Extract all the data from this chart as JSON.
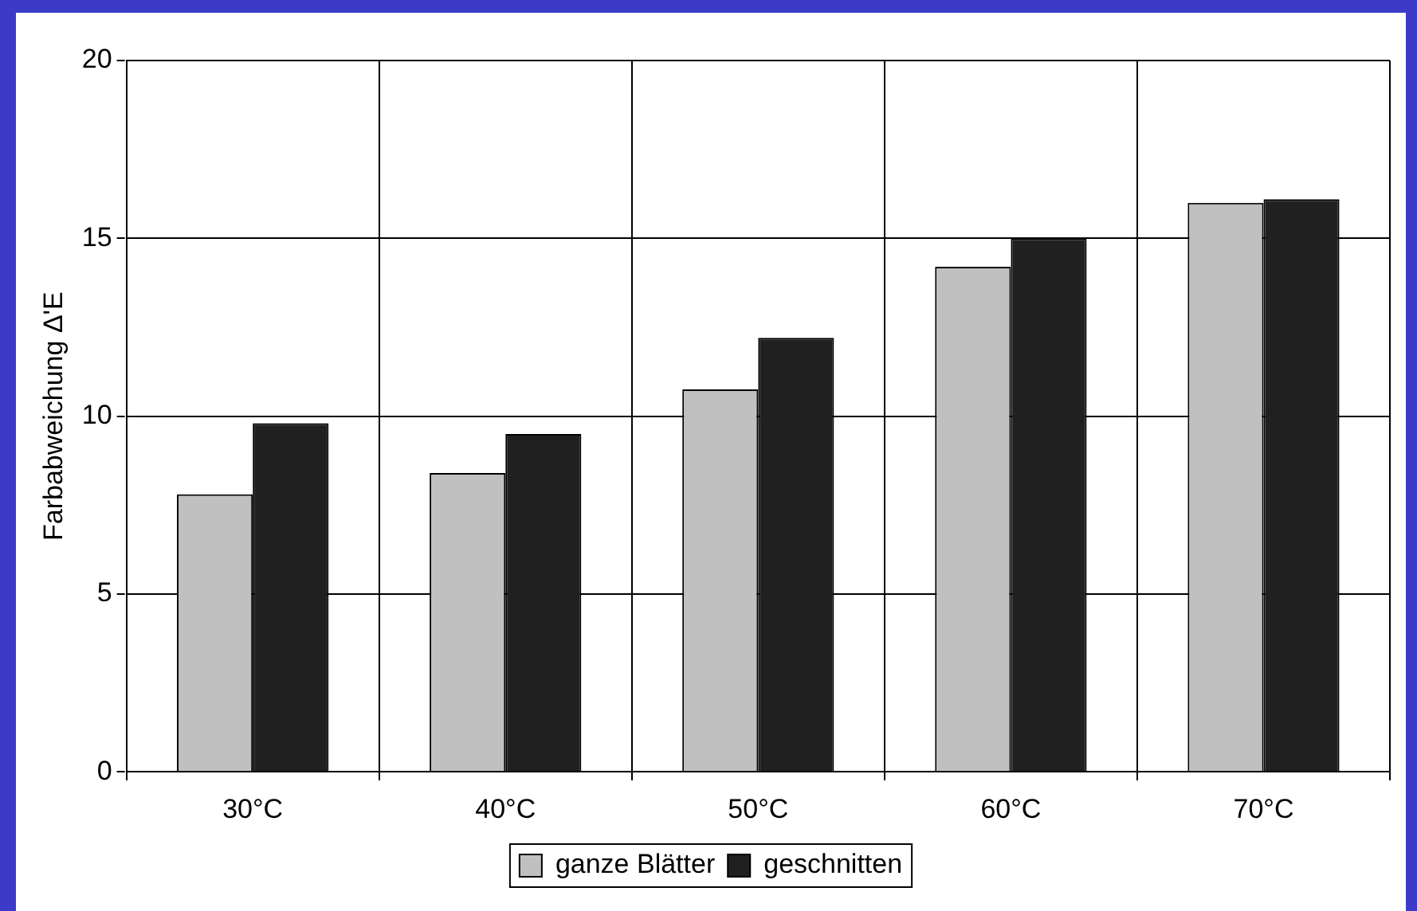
{
  "chart_data": {
    "type": "bar",
    "ylabel": "Farbabweichung Δ'E",
    "categories": [
      "30°C",
      "40°C",
      "50°C",
      "60°C",
      "70°C"
    ],
    "series": [
      {
        "name": "ganze Blätter",
        "color": "#c0c0c0",
        "values": [
          7.8,
          8.4,
          10.75,
          14.2,
          16.0
        ]
      },
      {
        "name": "geschnitten",
        "color": "#202020",
        "values": [
          9.8,
          9.5,
          12.2,
          15.0,
          16.1
        ]
      }
    ],
    "ylim": [
      0,
      20
    ],
    "yticks": [
      0,
      5,
      10,
      15,
      20
    ],
    "grid": true,
    "legend": "bottom"
  }
}
